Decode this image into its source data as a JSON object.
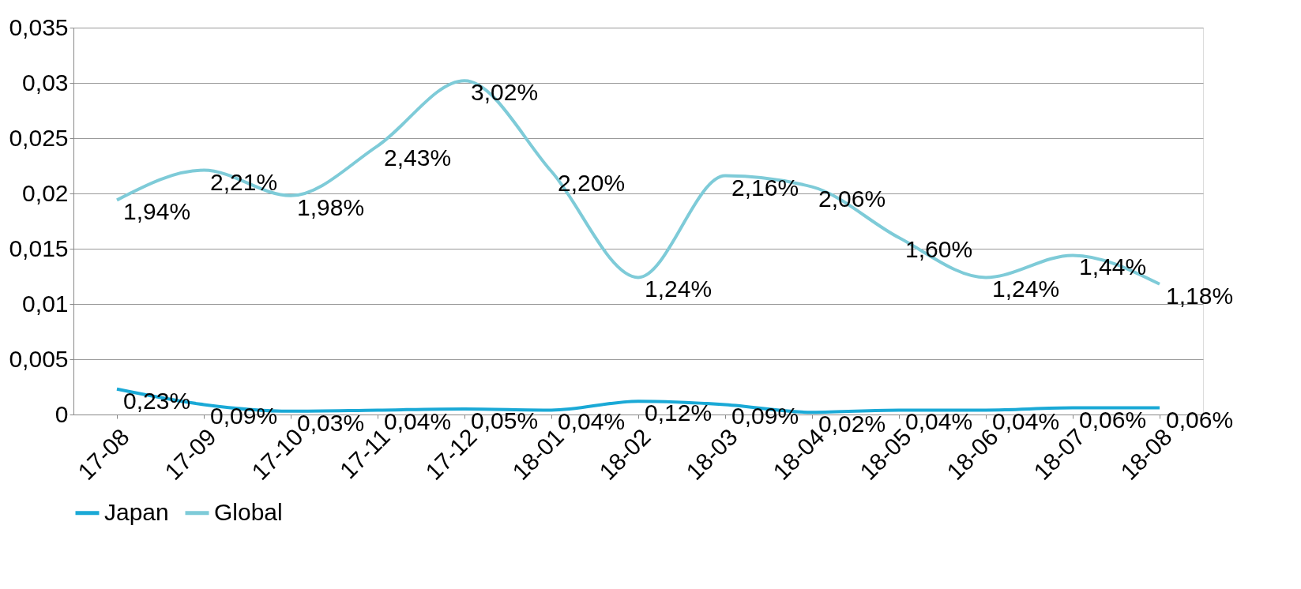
{
  "chart_data": {
    "type": "line",
    "categories": [
      "17-08",
      "17-09",
      "17-10",
      "17-11",
      "17-12",
      "18-01",
      "18-02",
      "18-03",
      "18-04",
      "18-05",
      "18-06",
      "18-07",
      "18-08"
    ],
    "series": [
      {
        "name": "Japan",
        "color": "#1aa9d6",
        "values": [
          0.0023,
          0.0009,
          0.0003,
          0.0004,
          0.0005,
          0.0004,
          0.0012,
          0.0009,
          0.0002,
          0.0004,
          0.0004,
          0.0006,
          0.0006
        ],
        "value_labels": [
          "0,23%",
          "0,09%",
          "0,03%",
          "0,04%",
          "0,05%",
          "0,04%",
          "0,12%",
          "0,09%",
          "0,02%",
          "0,04%",
          "0,04%",
          "0,06%",
          "0,06%"
        ]
      },
      {
        "name": "Global",
        "color": "#7ecbd8",
        "values": [
          0.0194,
          0.0221,
          0.0198,
          0.0243,
          0.0302,
          0.022,
          0.0124,
          0.0216,
          0.0206,
          0.016,
          0.0124,
          0.0144,
          0.0118
        ],
        "value_labels": [
          "1,94%",
          "2,21%",
          "1,98%",
          "2,43%",
          "3,02%",
          "2,20%",
          "1,24%",
          "2,16%",
          "2,06%",
          "1,60%",
          "1,24%",
          "1,44%",
          "1,18%"
        ]
      }
    ],
    "ylim": [
      0,
      0.035
    ],
    "yticks": [
      {
        "value": 0,
        "label": "0"
      },
      {
        "value": 0.005,
        "label": "0,005"
      },
      {
        "value": 0.01,
        "label": "0,01"
      },
      {
        "value": 0.015,
        "label": "0,015"
      },
      {
        "value": 0.02,
        "label": "0,02"
      },
      {
        "value": 0.025,
        "label": "0,025"
      },
      {
        "value": 0.03,
        "label": "0,03"
      },
      {
        "value": 0.035,
        "label": "0,035"
      }
    ],
    "grid": "y",
    "legend": "bottom",
    "marker": "none",
    "line_style": "solid"
  }
}
